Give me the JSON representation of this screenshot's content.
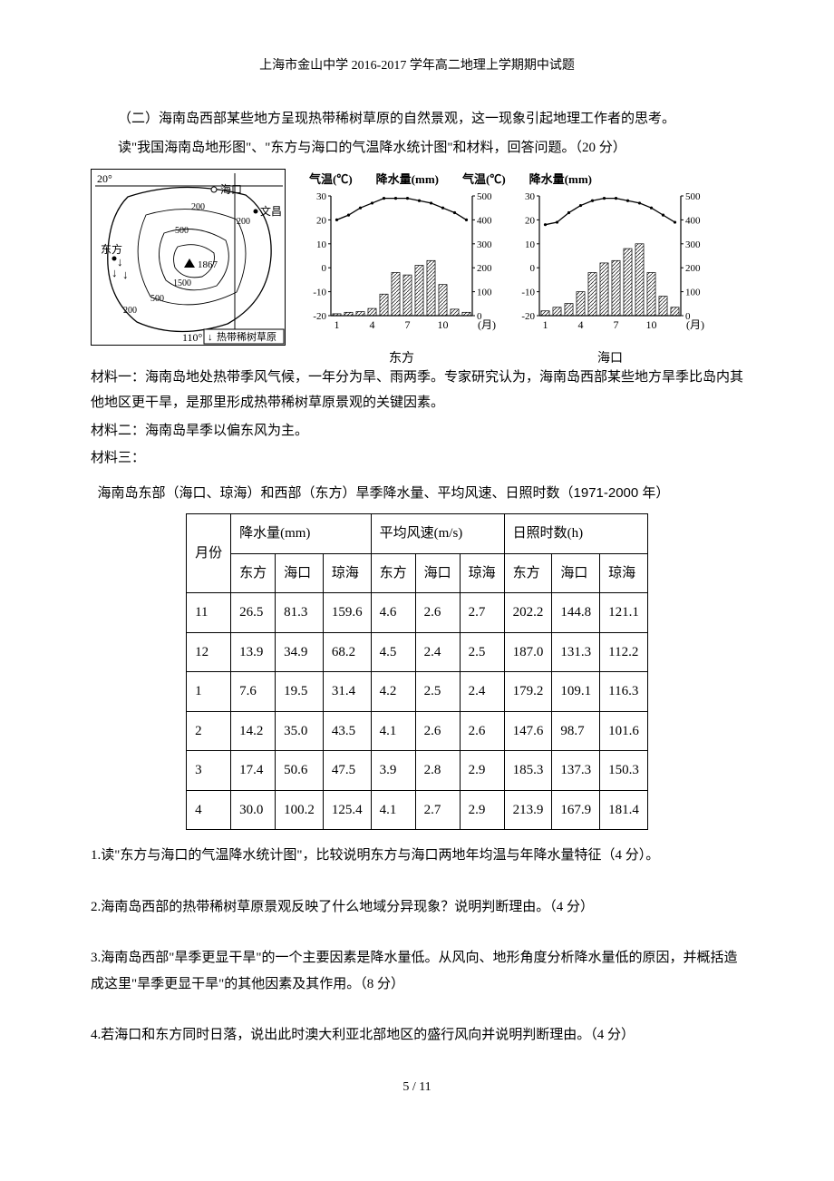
{
  "header": "上海市金山中学 2016-2017 学年高二地理上学期期中试题",
  "intro1": "（二）海南岛西部某些地方呈现热带稀树草原的自然景观，这一现象引起地理工作者的思考。",
  "intro2": "读\"我国海南岛地形图\"、\"东方与海口的气温降水统计图\"和材料，回答问题。（20 分）",
  "map": {
    "lat_label": "20°",
    "lon_label": "110°",
    "legend": "热带稀树草原",
    "cities": {
      "haikou": "海口",
      "wenchang": "文昌",
      "dongfang": "东方"
    },
    "peak": "1867",
    "contours": [
      "200",
      "200",
      "500",
      "500",
      "1500",
      "200",
      "200"
    ]
  },
  "chart_header": {
    "temp_label": "气温(℃)",
    "precip_label": "降水量(mm)"
  },
  "chart_y_temp": [
    "30",
    "20",
    "10",
    "0",
    "-10",
    "-20"
  ],
  "chart_y_precip": [
    "500",
    "400",
    "300",
    "200",
    "100",
    "0"
  ],
  "chart_x": [
    "1",
    "4",
    "7",
    "10",
    "(月)"
  ],
  "chart_left": {
    "caption": "东方",
    "temp_values": [
      20,
      22,
      25,
      27,
      29,
      29,
      29,
      28,
      27,
      25,
      23,
      20
    ],
    "precip_values": [
      8,
      14,
      17,
      30,
      90,
      180,
      170,
      210,
      230,
      130,
      27,
      14
    ]
  },
  "chart_right": {
    "caption": "海口",
    "temp_values": [
      18,
      19,
      23,
      26,
      28,
      29,
      29,
      28,
      27,
      25,
      22,
      19
    ],
    "precip_values": [
      20,
      35,
      51,
      100,
      180,
      220,
      230,
      280,
      300,
      180,
      81,
      35
    ]
  },
  "material1": "材料一：海南岛地处热带季风气候，一年分为旱、雨两季。专家研究认为，海南岛西部某些地方旱季比岛内其他地区更干旱，是那里形成热带稀树草原景观的关键因素。",
  "material2": "材料二：海南岛旱季以偏东风为主。",
  "material3_label": "材料三：",
  "table_caption": "海南岛东部（海口、琼海）和西部（东方）旱季降水量、平均风速、日照时数（1971-2000 年）",
  "table": {
    "month_header": "月份",
    "group_headers": [
      "降水量(mm)",
      "平均风速(m/s)",
      "日照时数(h)"
    ],
    "sub_headers": [
      "东方",
      "海口",
      "琼海",
      "东方",
      "海口",
      "琼海",
      "东方",
      "海口",
      "琼海"
    ],
    "rows": [
      {
        "m": "11",
        "v": [
          "26.5",
          "81.3",
          "159.6",
          "4.6",
          "2.6",
          "2.7",
          "202.2",
          "144.8",
          "121.1"
        ]
      },
      {
        "m": "12",
        "v": [
          "13.9",
          "34.9",
          "68.2",
          "4.5",
          "2.4",
          "2.5",
          "187.0",
          "131.3",
          "112.2"
        ]
      },
      {
        "m": "1",
        "v": [
          "7.6",
          "19.5",
          "31.4",
          "4.2",
          "2.5",
          "2.4",
          "179.2",
          "109.1",
          "116.3"
        ]
      },
      {
        "m": "2",
        "v": [
          "14.2",
          "35.0",
          "43.5",
          "4.1",
          "2.6",
          "2.6",
          "147.6",
          "98.7",
          "101.6"
        ]
      },
      {
        "m": "3",
        "v": [
          "17.4",
          "50.6",
          "47.5",
          "3.9",
          "2.8",
          "2.9",
          "185.3",
          "137.3",
          "150.3"
        ]
      },
      {
        "m": "4",
        "v": [
          "30.0",
          "100.2",
          "125.4",
          "4.1",
          "2.7",
          "2.9",
          "213.9",
          "167.9",
          "181.4"
        ]
      }
    ]
  },
  "q1": "1.读\"东方与海口的气温降水统计图\"，比较说明东方与海口两地年均温与年降水量特征（4 分）。",
  "q2": "2.海南岛西部的热带稀树草原景观反映了什么地域分异现象？说明判断理由。（4 分）",
  "q3": "3.海南岛西部\"旱季更显干旱\"的一个主要因素是降水量低。从风向、地形角度分析降水量低的原因，并概括造成这里\"旱季更显干旱\"的其他因素及其作用。（8 分）",
  "q4": "4.若海口和东方同时日落，说出此时澳大利亚北部地区的盛行风向并说明判断理由。（4 分）",
  "footer": "5 / 11",
  "colors": {
    "text": "#000000",
    "bg": "#ffffff",
    "border": "#000000",
    "bar_fill": "#ffffff",
    "hatch": "#000000"
  }
}
